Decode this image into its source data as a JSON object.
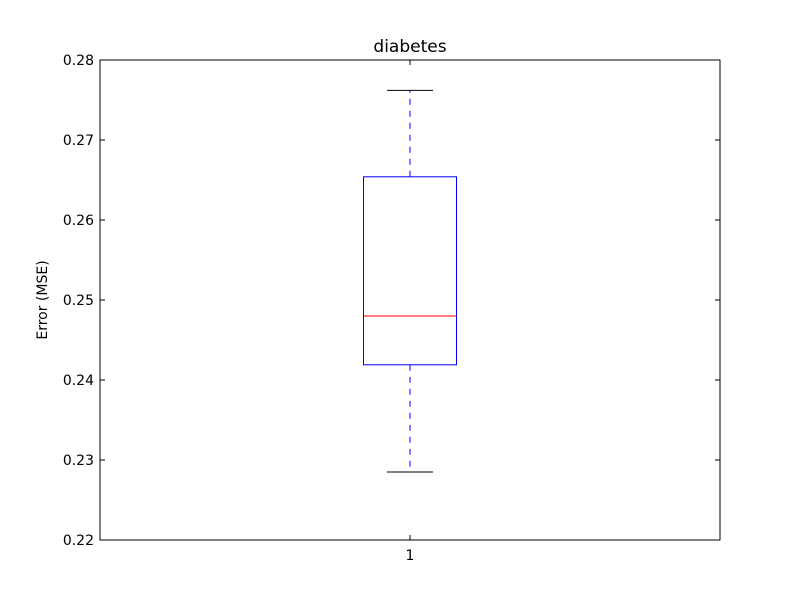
{
  "chart_data": {
    "type": "box",
    "title": "diabetes",
    "xlabel": "",
    "ylabel": "Error (MSE)",
    "ylim": [
      0.22,
      0.28
    ],
    "yticks": [
      "0.22",
      "0.23",
      "0.24",
      "0.25",
      "0.26",
      "0.27",
      "0.28"
    ],
    "categories": [
      "1"
    ],
    "boxes": [
      {
        "category": "1",
        "whisker_low": 0.2285,
        "q1": 0.2419,
        "median": 0.248,
        "q3": 0.2654,
        "whisker_high": 0.2762
      }
    ],
    "grid": false,
    "colors": {
      "box": "#0000ff",
      "median": "#ff0000",
      "whisker": "#0000ff",
      "cap": "#000000",
      "axes": "#000000"
    }
  }
}
